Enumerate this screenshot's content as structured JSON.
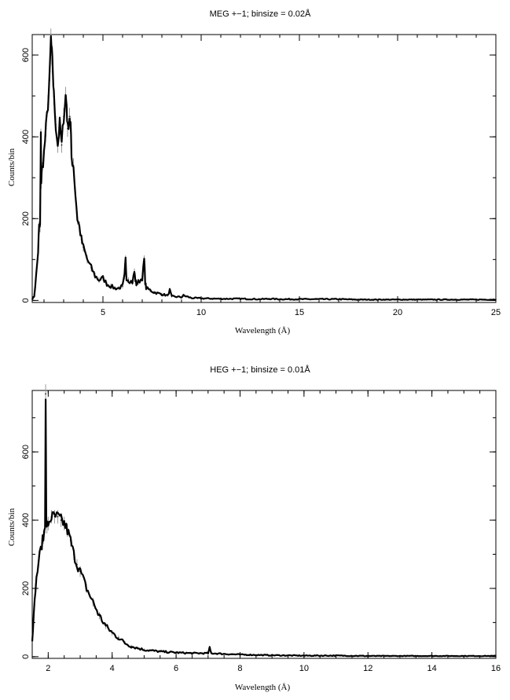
{
  "chart_data": [
    {
      "type": "line",
      "title": "MEG +−1; binsize = 0.02Å",
      "xlabel": "Wavelength (Å)",
      "ylabel": "Counts/bin",
      "xlim": [
        1.4,
        25
      ],
      "ylim": [
        -5,
        650
      ],
      "xticks": [
        5,
        10,
        15,
        20,
        25
      ],
      "yticks": [
        0,
        200,
        400,
        600
      ],
      "x_minor_step": 1,
      "y_minor_step": 100,
      "grid": false,
      "series": [
        {
          "x": [
            1.4,
            1.5,
            1.6,
            1.7,
            1.75,
            1.8,
            1.84,
            1.86,
            1.9,
            2.0,
            2.1,
            2.2,
            2.3,
            2.35,
            2.4,
            2.45,
            2.5,
            2.6,
            2.7,
            2.8,
            2.9,
            3.0,
            3.1,
            3.15,
            3.2,
            3.3,
            3.35,
            3.4,
            3.5,
            3.6,
            3.7,
            3.8,
            3.9,
            4.0,
            4.2,
            4.4,
            4.6,
            4.8,
            5.0,
            5.2,
            5.4,
            5.6,
            5.8,
            6.0,
            6.1,
            6.15,
            6.2,
            6.3,
            6.5,
            6.6,
            6.65,
            6.7,
            6.8,
            7.0,
            7.1,
            7.15,
            7.2,
            7.4,
            7.6,
            8.0,
            8.3,
            8.4,
            8.5,
            9.0,
            9.1,
            9.5,
            10,
            11,
            12,
            13,
            13.5,
            14,
            15,
            16,
            17,
            18,
            19,
            20,
            21,
            22,
            23,
            24,
            25
          ],
          "y": [
            3,
            10,
            60,
            120,
            180,
            180,
            400,
            290,
            320,
            360,
            420,
            480,
            560,
            640,
            600,
            560,
            500,
            430,
            380,
            430,
            380,
            450,
            500,
            480,
            420,
            450,
            430,
            350,
            330,
            260,
            200,
            180,
            150,
            130,
            100,
            80,
            60,
            50,
            55,
            40,
            35,
            30,
            30,
            35,
            60,
            100,
            55,
            50,
            45,
            70,
            50,
            40,
            45,
            55,
            100,
            45,
            30,
            25,
            20,
            15,
            12,
            25,
            10,
            8,
            12,
            6,
            5,
            4,
            4,
            3,
            4,
            3,
            3,
            3,
            3,
            2,
            2,
            2,
            2,
            2,
            2,
            2,
            2
          ],
          "errors": [
            2,
            3,
            8,
            11,
            13,
            13,
            20,
            17,
            18,
            19,
            20,
            22,
            24,
            25,
            24,
            24,
            22,
            21,
            19,
            21,
            19,
            21,
            22,
            22,
            20,
            21,
            21,
            19,
            18,
            16,
            14,
            13,
            12,
            11,
            10,
            9,
            8,
            7,
            7,
            6,
            6,
            5,
            5,
            6,
            8,
            10,
            7,
            7,
            7,
            8,
            7,
            6,
            7,
            7,
            10,
            7,
            5,
            5,
            4,
            4,
            3,
            5,
            3,
            3,
            3,
            2,
            2,
            2,
            2,
            2,
            2,
            2,
            2,
            2,
            2,
            1,
            1,
            1,
            1,
            1,
            1,
            1,
            1
          ]
        }
      ]
    },
    {
      "type": "line",
      "title": "HEG +−1; binsize = 0.01Å",
      "xlabel": "Wavelength (Å)",
      "ylabel": "Counts/bin",
      "xlim": [
        1.5,
        16
      ],
      "ylim": [
        -5,
        780
      ],
      "xticks": [
        2,
        4,
        6,
        8,
        10,
        12,
        14,
        16
      ],
      "yticks": [
        0,
        200,
        400,
        600
      ],
      "x_minor_step": 0.5,
      "y_minor_step": 100,
      "grid": false,
      "series": [
        {
          "x": [
            1.5,
            1.55,
            1.6,
            1.7,
            1.8,
            1.85,
            1.9,
            1.92,
            1.94,
            1.96,
            2.0,
            2.1,
            2.2,
            2.3,
            2.4,
            2.5,
            2.6,
            2.7,
            2.8,
            2.9,
            3.0,
            3.2,
            3.4,
            3.6,
            3.8,
            4.0,
            4.2,
            4.4,
            4.6,
            4.8,
            5.0,
            5.5,
            6.0,
            6.5,
            7.0,
            7.05,
            7.1,
            7.5,
            8.0,
            8.5,
            9.0,
            10,
            11,
            12,
            13,
            14,
            15,
            16
          ],
          "y": [
            50,
            120,
            200,
            280,
            330,
            350,
            380,
            770,
            400,
            380,
            390,
            410,
            410,
            410,
            400,
            390,
            370,
            340,
            300,
            270,
            250,
            200,
            160,
            120,
            90,
            70,
            55,
            40,
            30,
            25,
            20,
            15,
            12,
            10,
            10,
            25,
            10,
            8,
            6,
            5,
            4,
            3,
            3,
            2,
            2,
            2,
            2,
            2
          ],
          "errors": [
            7,
            11,
            14,
            17,
            18,
            19,
            19,
            28,
            20,
            19,
            20,
            20,
            20,
            20,
            20,
            20,
            19,
            18,
            17,
            16,
            16,
            14,
            13,
            11,
            9,
            8,
            7,
            6,
            5,
            5,
            4,
            4,
            3,
            3,
            3,
            5,
            3,
            3,
            2,
            2,
            2,
            2,
            2,
            1,
            1,
            1,
            1,
            1
          ]
        }
      ]
    }
  ]
}
